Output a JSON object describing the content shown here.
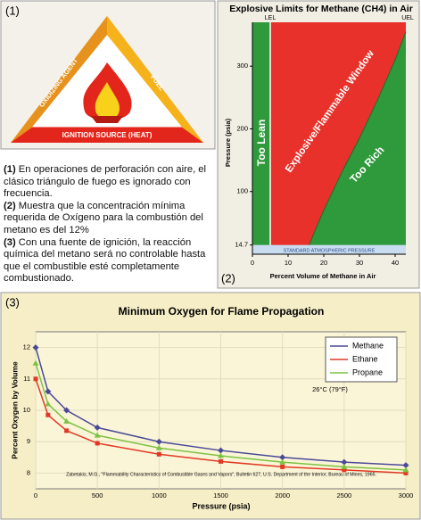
{
  "panel1": {
    "label": "(1)",
    "triangle": {
      "left": "OXIDIZING AGENT",
      "right": "FUEL",
      "bottom": "IGNITION SOURCE (HEAT)"
    }
  },
  "notes": [
    {
      "number": "(1)",
      "text": "En operaciones de perforación con aire, el clásico triángulo de fuego es ignorado con frecuencia."
    },
    {
      "number": "(2)",
      "text": "Muestra que la concentración mínima requerida de Oxígeno para la combustión del metano es del 12%"
    },
    {
      "number": "(3)",
      "text": "Con una fuente de ignición, la reacción química del metano será no controlable hasta que el combustible esté completamente combustionado."
    }
  ],
  "chart_data": [
    {
      "type": "region",
      "panel_label": "(2)",
      "title": "Explosive Limits for Methane (CH4) in Air",
      "x_label": "Percent Volume of Methane in Air",
      "y_label": "Pressure (psia)",
      "xlim": [
        0,
        43
      ],
      "xticks": [
        0,
        10,
        20,
        30,
        40
      ],
      "ylim": [
        0,
        370
      ],
      "yticks": [
        14.7,
        100,
        200,
        300
      ],
      "lel": {
        "label": "LEL",
        "value": 5
      },
      "uel": {
        "label": "UEL",
        "x": [
          15,
          17,
          20,
          25,
          30,
          35,
          40,
          43
        ],
        "y": [
          0,
          30,
          70,
          130,
          185,
          245,
          310,
          355
        ]
      },
      "band": {
        "label": "STANDARD ATMOSPHERIC PRESSURE",
        "value": 14.7,
        "color": "#c9dcf0"
      },
      "regions": [
        {
          "name": "Too Lean",
          "color": "#2f9a3c"
        },
        {
          "name": "Explosive/Flammable Window",
          "color": "#e7312a"
        },
        {
          "name": "Too Rich",
          "color": "#2f9a3c"
        }
      ]
    },
    {
      "type": "line",
      "panel_label": "(3)",
      "title": "Minimum Oxygen for Flame Propagation",
      "x_label": "Pressure (psia)",
      "y_label": "Percent Oxygen by Volume",
      "x": [
        0,
        100,
        250,
        500,
        1000,
        1500,
        2000,
        2500,
        3000
      ],
      "series": [
        {
          "name": "Methane",
          "color": "#4a4a96",
          "marker": "diamond",
          "values": [
            12.0,
            10.6,
            10.0,
            9.45,
            9.0,
            8.72,
            8.5,
            8.35,
            8.25
          ]
        },
        {
          "name": "Ethane",
          "color": "#e03a26",
          "marker": "square",
          "values": [
            11.0,
            9.85,
            9.35,
            8.95,
            8.6,
            8.37,
            8.2,
            8.1,
            8.0
          ]
        },
        {
          "name": "Propane",
          "color": "#7dc242",
          "marker": "triangle",
          "values": [
            11.5,
            10.2,
            9.65,
            9.2,
            8.8,
            8.55,
            8.35,
            8.2,
            8.1
          ]
        }
      ],
      "xlim": [
        0,
        3000
      ],
      "xticks": [
        0,
        500,
        1000,
        1500,
        2000,
        2500,
        3000
      ],
      "ylim": [
        7.5,
        12.5
      ],
      "yticks": [
        8,
        9,
        10,
        11,
        12
      ],
      "grid": true,
      "legend": "top-right",
      "annotations": [
        "26°C (79°F)",
        "Zabetakis, M.G., \"Flammability Characteristics of Combustible Gases and Vapors\", Bulletin 627, U.S. Department of the Interior, Bureau of Mines, 1965."
      ]
    }
  ]
}
